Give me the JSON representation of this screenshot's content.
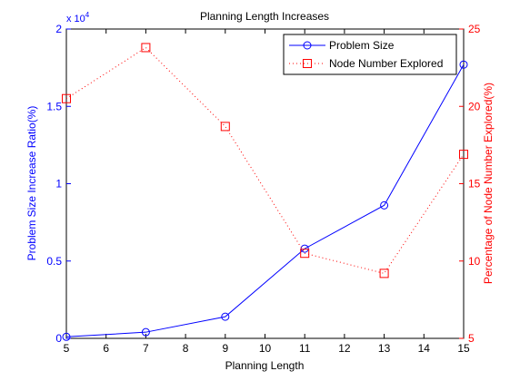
{
  "chart_data": {
    "type": "line",
    "title": "Planning Length Increases",
    "xlabel": "Planning Length",
    "ylabel_left": "Problem Size Increase Ratio(%)",
    "ylabel_right": "Percentage of Node Number Explored(%)",
    "left_multiplier_label": "x 10",
    "left_multiplier_exponent": "4",
    "xlim": [
      5,
      15
    ],
    "ylim_left": [
      0,
      2
    ],
    "ylim_right": [
      5,
      25
    ],
    "x_ticks": [
      5,
      6,
      7,
      8,
      9,
      10,
      11,
      12,
      13,
      14,
      15
    ],
    "y_left_ticks": [
      0,
      0.5,
      1,
      1.5,
      2
    ],
    "y_right_ticks": [
      5,
      10,
      15,
      20,
      25
    ],
    "legend_position": "top-right",
    "series": [
      {
        "name": "Problem Size",
        "axis": "left",
        "color": "#0000ff",
        "line_style": "solid",
        "marker": "circle",
        "x": [
          5,
          7,
          9,
          11,
          13,
          15
        ],
        "values": [
          0.01,
          0.04,
          0.14,
          0.58,
          0.86,
          1.77
        ]
      },
      {
        "name": "Node Number Explored",
        "axis": "right",
        "color": "#ff0000",
        "line_style": "dotted",
        "marker": "square",
        "x": [
          5,
          7,
          9,
          11,
          13,
          15
        ],
        "values": [
          20.5,
          23.8,
          18.7,
          10.5,
          9.2,
          16.9
        ]
      }
    ]
  }
}
